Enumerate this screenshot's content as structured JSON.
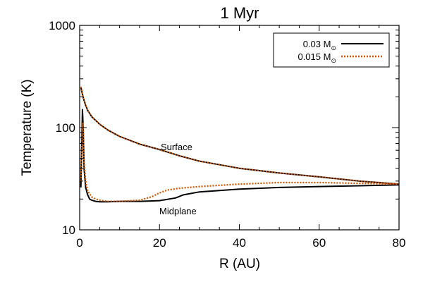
{
  "chart_data": {
    "type": "line",
    "title": "1 Myr",
    "xlabel": "R (AU)",
    "ylabel": "Temperature (K)",
    "xlim": [
      0,
      80
    ],
    "ylim": [
      10,
      1000
    ],
    "yscale": "log",
    "x_ticks": [
      0,
      20,
      40,
      60,
      80
    ],
    "y_ticks": [
      10,
      100,
      1000
    ],
    "legend": {
      "placement": "top-right",
      "entries": [
        {
          "label": "0.03 M",
          "subscript": "⊙",
          "style": "solid",
          "color": "#000000"
        },
        {
          "label": "0.015 M",
          "subscript": "⊙",
          "style": "dotted",
          "color": "#cc5500"
        }
      ]
    },
    "annotations": [
      {
        "text": "Surface",
        "x": 26,
        "y": 60
      },
      {
        "text": "Midplane",
        "x": 24,
        "y": 13
      }
    ],
    "series": [
      {
        "name": "0.03 M⊙ surface",
        "style": "solid",
        "color": "#000000",
        "x": [
          0.3,
          0.6,
          1,
          1.5,
          2,
          3,
          5,
          7,
          10,
          15,
          20,
          25,
          30,
          40,
          50,
          60,
          70,
          80
        ],
        "y": [
          250,
          220,
          190,
          165,
          148,
          128,
          108,
          95,
          82,
          69,
          61,
          53,
          47,
          40,
          36,
          33,
          30,
          28
        ]
      },
      {
        "name": "0.015 M⊙ surface",
        "style": "dotted",
        "color": "#cc5500",
        "x": [
          0.3,
          0.6,
          1,
          1.5,
          2,
          3,
          5,
          7,
          10,
          15,
          20,
          25,
          30,
          40,
          50,
          60,
          70,
          80
        ],
        "y": [
          250,
          220,
          190,
          165,
          148,
          128,
          108,
          95,
          82,
          69,
          61,
          53,
          47,
          40,
          36,
          33,
          30,
          28
        ]
      },
      {
        "name": "0.03 M⊙ midplane",
        "style": "solid",
        "color": "#000000",
        "x": [
          0.3,
          0.5,
          0.7,
          0.9,
          1.1,
          1.5,
          2,
          2.5,
          3,
          4,
          5,
          7,
          10,
          15,
          20,
          24,
          26,
          30,
          40,
          50,
          60,
          70,
          80
        ],
        "y": [
          26,
          60,
          150,
          95,
          40,
          26,
          22,
          20,
          19.5,
          19,
          18.8,
          18.8,
          19,
          19,
          19.3,
          20.5,
          22,
          23.5,
          25,
          26,
          26.5,
          27,
          27.5
        ]
      },
      {
        "name": "0.015 M⊙ midplane",
        "style": "dotted",
        "color": "#cc5500",
        "x": [
          0.3,
          0.5,
          0.8,
          1.1,
          1.5,
          2,
          3,
          4,
          5,
          7,
          10,
          15,
          18,
          20,
          22,
          25,
          30,
          40,
          50,
          60,
          70,
          80
        ],
        "y": [
          30,
          60,
          110,
          45,
          30,
          24,
          21,
          20,
          19.5,
          19,
          19,
          19.5,
          21,
          23,
          24.5,
          25.5,
          26.5,
          28,
          29,
          29,
          28.5,
          28
        ]
      }
    ]
  }
}
